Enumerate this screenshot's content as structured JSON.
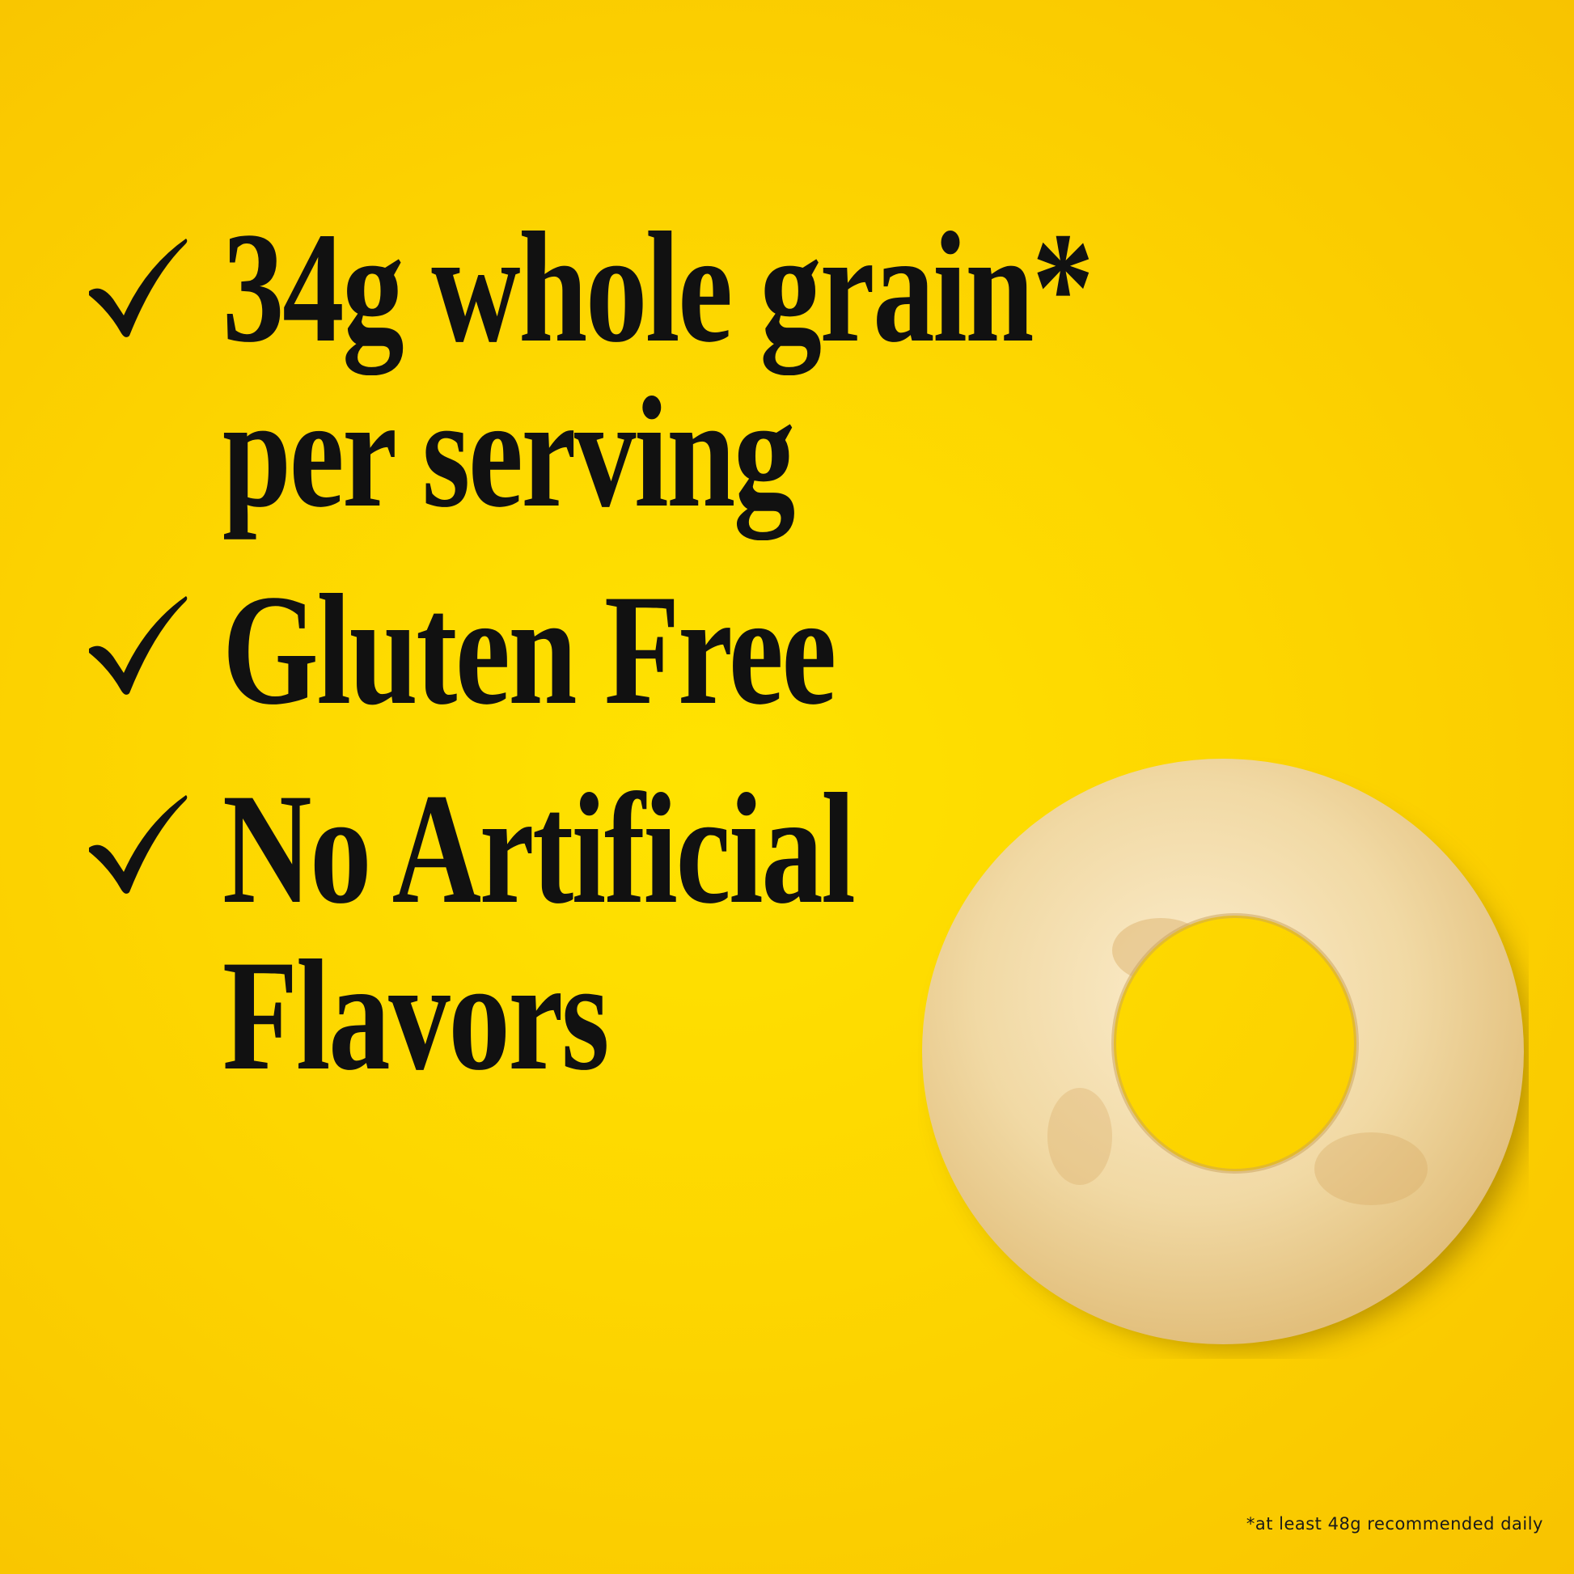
{
  "claims": [
    {
      "lines": [
        "34g whole grain*",
        "per serving"
      ],
      "icon": "checkmark-icon"
    },
    {
      "lines": [
        "Gluten Free"
      ],
      "icon": "checkmark-icon"
    },
    {
      "lines": [
        "No Artificial",
        "Flavors"
      ],
      "icon": "checkmark-icon"
    }
  ],
  "footnote": "*at least 48g recommended daily",
  "colors": {
    "background": "#fdd600",
    "text": "#111111",
    "cereal": "#f3dca8"
  }
}
